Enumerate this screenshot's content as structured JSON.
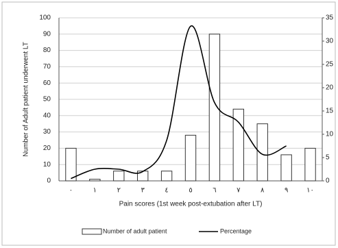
{
  "chart_data": {
    "type": "bar-line",
    "categories": [
      "٠",
      "١",
      "٢",
      "٣",
      "٤",
      "٥",
      "٦",
      "٧",
      "٨",
      "٩",
      "١٠"
    ],
    "series": [
      {
        "name": "Number of adult patient",
        "type": "bar",
        "color": "#ffffff",
        "values": [
          20,
          1,
          6,
          6,
          6,
          28,
          90,
          44,
          35,
          16,
          20
        ]
      },
      {
        "name": "Percentage",
        "type": "line",
        "axis": "y2",
        "color": "#000000",
        "values": [
          0.5,
          2.5,
          2.5,
          2,
          8.7,
          33.2,
          16.8,
          12.6,
          5.7,
          7.5,
          null
        ]
      }
    ],
    "xlabel": "Pain scores (1st week post-extubation after LT)",
    "ylabel": "Number of Adult patient underwent LT",
    "ylim": [
      0,
      100
    ],
    "yticks": [
      0,
      10,
      20,
      30,
      40,
      50,
      60,
      70,
      80,
      90,
      100
    ],
    "y2lim": [
      0,
      35
    ],
    "y2ticks": [
      0,
      5,
      10,
      15,
      20,
      25,
      30,
      35
    ],
    "grid": true,
    "legend": "bottom"
  }
}
